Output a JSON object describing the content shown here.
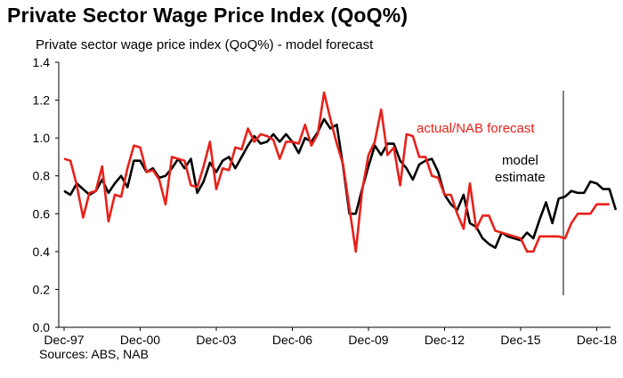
{
  "page": {
    "title": "Private Sector Wage Price Index (QoQ%)",
    "sources": "Sources: ABS, NAB"
  },
  "chart_data": {
    "type": "line",
    "title": "Private sector wage price index (QoQ%)  - model forecast",
    "xlabel": "",
    "ylabel": "",
    "ylim": [
      0,
      1.4
    ],
    "yticks": [
      "0.0",
      "0.2",
      "0.4",
      "0.6",
      "0.8",
      "1.0",
      "1.2",
      "1.4"
    ],
    "xticks": [
      "Dec-97",
      "Dec-00",
      "Dec-03",
      "Dec-06",
      "Dec-09",
      "Dec-12",
      "Dec-15",
      "Dec-18"
    ],
    "grid": false,
    "legend": "none",
    "forecast_start": "Jun-17",
    "annotations": [
      {
        "text_lines": [
          "actual/NAB forecast"
        ],
        "color": "#e8211a"
      },
      {
        "text_lines": [
          "model",
          "estimate"
        ],
        "color": "#000000"
      }
    ],
    "series": [
      {
        "name": "actual/NAB forecast",
        "color": "#e8211a",
        "start": "Dec-97",
        "values": [
          0.89,
          0.88,
          0.75,
          0.58,
          0.71,
          0.72,
          0.85,
          0.56,
          0.7,
          0.69,
          0.84,
          0.96,
          0.95,
          0.82,
          0.83,
          0.78,
          0.65,
          0.9,
          0.89,
          0.88,
          0.75,
          0.74,
          0.85,
          0.98,
          0.73,
          0.84,
          0.83,
          0.95,
          0.94,
          1.05,
          0.98,
          1.02,
          1.01,
          0.99,
          0.89,
          0.98,
          0.98,
          0.97,
          1.07,
          0.96,
          1.02,
          1.24,
          1.1,
          0.97,
          0.86,
          0.63,
          0.4,
          0.72,
          0.91,
          0.98,
          1.15,
          0.91,
          0.95,
          0.75,
          1.02,
          1.01,
          0.9,
          0.9,
          0.8,
          0.79,
          0.7,
          0.7,
          0.6,
          0.52,
          0.76,
          0.52,
          0.59,
          0.59,
          0.51,
          0.5,
          0.49,
          0.48,
          0.47,
          0.4,
          0.4,
          0.48,
          0.48,
          0.48,
          0.48,
          0.47,
          0.55,
          0.6,
          0.6,
          0.6,
          0.65,
          0.65,
          0.65
        ]
      },
      {
        "name": "model estimate",
        "color": "#000000",
        "start": "Dec-97",
        "values": [
          0.72,
          0.7,
          0.76,
          0.73,
          0.7,
          0.72,
          0.78,
          0.71,
          0.76,
          0.8,
          0.74,
          0.88,
          0.88,
          0.82,
          0.84,
          0.79,
          0.8,
          0.84,
          0.89,
          0.84,
          0.89,
          0.71,
          0.77,
          0.87,
          0.82,
          0.88,
          0.9,
          0.84,
          0.9,
          0.96,
          1.01,
          0.97,
          0.98,
          1.02,
          0.98,
          1.02,
          0.98,
          0.92,
          1.0,
          0.98,
          1.03,
          1.1,
          1.05,
          1.07,
          0.85,
          0.6,
          0.6,
          0.73,
          0.85,
          0.96,
          0.91,
          0.97,
          0.97,
          0.88,
          0.84,
          0.78,
          0.86,
          0.88,
          0.89,
          0.82,
          0.7,
          0.65,
          0.62,
          0.7,
          0.55,
          0.53,
          0.47,
          0.44,
          0.42,
          0.5,
          0.48,
          0.47,
          0.46,
          0.5,
          0.47,
          0.57,
          0.66,
          0.55,
          0.68,
          0.69,
          0.72,
          0.71,
          0.71,
          0.77,
          0.76,
          0.73,
          0.73,
          0.62
        ]
      }
    ]
  }
}
